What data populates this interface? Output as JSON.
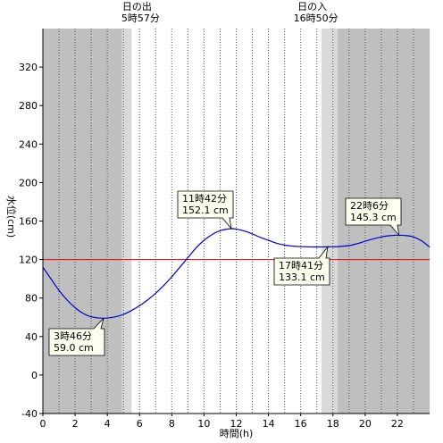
{
  "chart_data": {
    "type": "line",
    "xlabel": "時間(h)",
    "ylabel": "水位(cm)",
    "xlim": [
      0,
      24
    ],
    "ylim": [
      -40,
      360
    ],
    "x_ticks": [
      0,
      2,
      4,
      6,
      8,
      10,
      12,
      14,
      16,
      18,
      20,
      22
    ],
    "y_ticks": [
      -40,
      0,
      40,
      80,
      120,
      160,
      200,
      240,
      280,
      320
    ],
    "grid": "vertical dotted every 1h",
    "reference_line": {
      "y": 120,
      "color": "#e00000"
    },
    "sunrise": {
      "label": "日の出",
      "time": "5時57分",
      "hour": 5.95
    },
    "sunset": {
      "label": "日の入",
      "time": "16時50分",
      "hour": 16.83
    },
    "twilight_shading": {
      "night_color": "#bfbfbf",
      "twilight_color": "#d9d9d9",
      "dawn_twilight": [
        4.9,
        5.5
      ],
      "day": [
        5.5,
        17.3
      ],
      "dusk_twilight": [
        17.3,
        18.3
      ]
    },
    "series": [
      {
        "color": "#0000cc",
        "points": [
          [
            0,
            112
          ],
          [
            0.5,
            100
          ],
          [
            1,
            88
          ],
          [
            1.5,
            78
          ],
          [
            2,
            70
          ],
          [
            2.5,
            64
          ],
          [
            3,
            60.5
          ],
          [
            3.77,
            59.0
          ],
          [
            4.5,
            60.5
          ],
          [
            5,
            63
          ],
          [
            5.5,
            67
          ],
          [
            6,
            72
          ],
          [
            6.5,
            78
          ],
          [
            7,
            85
          ],
          [
            7.5,
            93
          ],
          [
            8,
            102
          ],
          [
            8.5,
            112
          ],
          [
            9,
            122
          ],
          [
            9.5,
            132
          ],
          [
            10,
            140
          ],
          [
            10.5,
            146
          ],
          [
            11,
            150
          ],
          [
            11.7,
            152.1
          ],
          [
            12.2,
            151
          ],
          [
            12.8,
            148
          ],
          [
            13.5,
            143
          ],
          [
            14,
            140
          ],
          [
            14.5,
            137
          ],
          [
            15,
            135
          ],
          [
            15.5,
            134
          ],
          [
            16,
            133.5
          ],
          [
            16.5,
            133.2
          ],
          [
            17.1,
            133.1
          ],
          [
            17.7,
            133.2
          ],
          [
            18.3,
            133.5
          ],
          [
            19,
            134.5
          ],
          [
            19.5,
            136.5
          ],
          [
            20,
            139
          ],
          [
            20.5,
            141.5
          ],
          [
            21,
            143.5
          ],
          [
            21.5,
            144.8
          ],
          [
            22.1,
            145.3
          ],
          [
            22.6,
            144.8
          ],
          [
            23,
            143.5
          ],
          [
            23.5,
            139.5
          ],
          [
            24,
            133
          ]
        ]
      }
    ],
    "annotations": [
      {
        "time": "3時46分",
        "value": "59.0 cm",
        "x": 3.77,
        "y": 59.0
      },
      {
        "time": "11時42分",
        "value": "152.1 cm",
        "x": 11.7,
        "y": 152.1
      },
      {
        "time": "17時41分",
        "value": "133.1 cm",
        "x": 17.68,
        "y": 133.1
      },
      {
        "time": "22時6分",
        "value": "145.3 cm",
        "x": 22.1,
        "y": 145.3
      }
    ]
  }
}
